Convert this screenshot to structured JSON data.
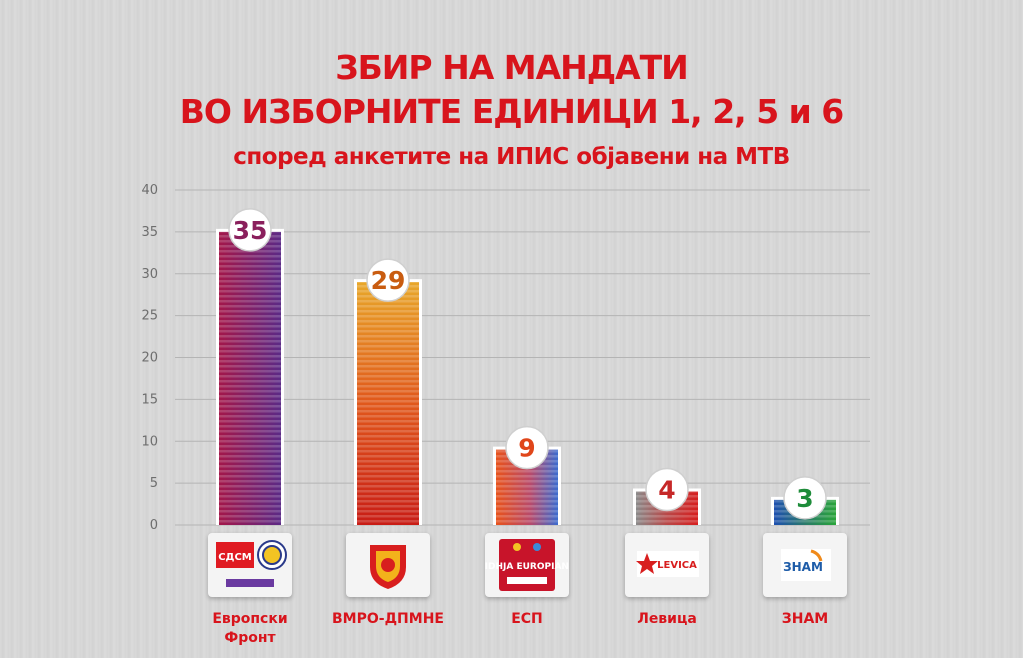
{
  "title_line1": "ЗБИР НА МАНДАТИ",
  "title_line2": "ВО ИЗБОРНИТЕ ЕДИНИЦИ 1, 2, 5 и 6",
  "subtitle": "според анкетите на ИПИС објавени на МТВ",
  "colors": {
    "title": "#d8141c",
    "bar_european_front": "#8a1f5c",
    "bar_vmro": "#d63a12",
    "bar_esp": "#e0461a",
    "bar_levica": "#c62828",
    "bar_znam": "#1e5ca8"
  },
  "chart_data": {
    "type": "bar",
    "categories": [
      "Европски Фронт",
      "ВМРО-ДПМНЕ",
      "ЕСП",
      "Левица",
      "ЗНАМ"
    ],
    "values": [
      35,
      29,
      9,
      4,
      3
    ],
    "value_label_colors": [
      "#8a1f5c",
      "#c95c10",
      "#e0461a",
      "#c62828",
      "#1e8c3a"
    ],
    "yticks": [
      0,
      5,
      10,
      15,
      20,
      25,
      30,
      35,
      40
    ],
    "ylim": [
      0,
      40
    ],
    "grid": true,
    "title": "ЗБИР НА МАНДАТИ ВО ИЗБОРНИТЕ ЕДИНИЦИ 1, 2, 5 и 6",
    "subtitle": "според анкетите на ИПИС објавени на МТВ"
  },
  "parties": [
    {
      "label_line1": "Европски",
      "label_line2": "Фронт",
      "logo_text": "СДСМ",
      "logo_icon": "sdsm-logo"
    },
    {
      "label_line1": "ВМРО-ДПМНЕ",
      "label_line2": "",
      "logo_text": "",
      "logo_icon": "vmro-lion-emblem"
    },
    {
      "label_line1": "ЕСП",
      "label_line2": "",
      "logo_text": "LIDHJA EUROPIANE",
      "logo_icon": "lidhja-europiane-logo"
    },
    {
      "label_line1": "Левица",
      "label_line2": "",
      "logo_text": "LEVICA",
      "logo_icon": "levica-star-logo"
    },
    {
      "label_line1": "ЗНАМ",
      "label_line2": "",
      "logo_text": "ЗНАМ",
      "logo_icon": "znam-logo"
    }
  ]
}
